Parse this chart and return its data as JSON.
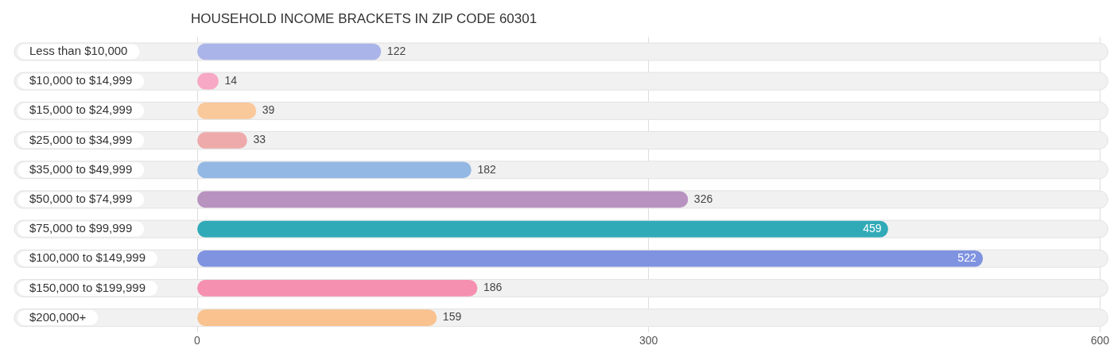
{
  "chart_data": {
    "type": "bar",
    "orientation": "horizontal",
    "title": "HOUSEHOLD INCOME BRACKETS IN ZIP CODE 60301",
    "categories": [
      "Less than $10,000",
      "$10,000 to $14,999",
      "$15,000 to $24,999",
      "$25,000 to $34,999",
      "$35,000 to $49,999",
      "$50,000 to $74,999",
      "$75,000 to $99,999",
      "$100,000 to $149,999",
      "$150,000 to $199,999",
      "$200,000+"
    ],
    "values": [
      122,
      14,
      39,
      33,
      182,
      326,
      459,
      522,
      186,
      159
    ],
    "colors": [
      "#aab4e8",
      "#f7a8c4",
      "#f9c89b",
      "#eeaaaa",
      "#93b8e3",
      "#b893c0",
      "#31aab8",
      "#7f93e0",
      "#f590b0",
      "#f9c28f"
    ],
    "xlim": [
      0,
      600
    ],
    "xticks": [
      0,
      300,
      600
    ],
    "grid": "x",
    "data_labels": true,
    "legend": false
  }
}
